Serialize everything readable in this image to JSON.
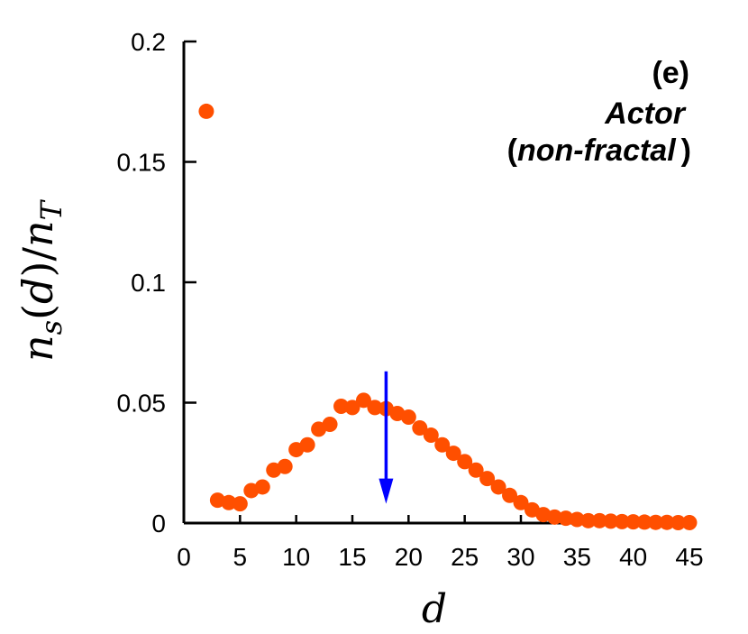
{
  "chart_data": {
    "type": "scatter",
    "title": "",
    "xlabel": "d",
    "ylabel": "n_s(d)/n_T",
    "xlim": [
      0,
      45
    ],
    "ylim": [
      0,
      0.2
    ],
    "x_ticks": [
      "0",
      "5",
      "10",
      "15",
      "20",
      "25",
      "30",
      "35",
      "40",
      "45"
    ],
    "y_ticks": [
      "0",
      "0.05",
      "0.1",
      "0.15",
      "0.2"
    ],
    "grid": false,
    "annotations": {
      "panel": "(e)",
      "name": "Actor",
      "paren_open": "(",
      "subtitle": "non-fractal",
      "paren_close": ")"
    },
    "series": [
      {
        "color": "#ff4f00",
        "x": [
          2,
          3,
          4,
          5,
          6,
          7,
          8,
          9,
          10,
          11,
          12,
          13,
          14,
          15,
          16,
          17,
          18,
          19,
          20,
          21,
          22,
          23,
          24,
          25,
          26,
          27,
          28,
          29,
          30,
          31,
          32,
          33,
          34,
          35,
          36,
          37,
          38,
          39,
          40,
          41,
          42,
          43,
          44,
          45
        ],
        "y": [
          0.171,
          0.0095,
          0.0085,
          0.008,
          0.0135,
          0.015,
          0.022,
          0.0235,
          0.0305,
          0.0325,
          0.039,
          0.041,
          0.0485,
          0.048,
          0.051,
          0.048,
          0.0475,
          0.0455,
          0.044,
          0.0395,
          0.0365,
          0.0325,
          0.029,
          0.0255,
          0.022,
          0.0185,
          0.015,
          0.0115,
          0.0085,
          0.0055,
          0.0035,
          0.0025,
          0.002,
          0.0015,
          0.001,
          0.001,
          0.0008,
          0.0006,
          0.0005,
          0.0004,
          0.0003,
          0.0003,
          0.0002,
          0.0002
        ]
      }
    ],
    "arrow": {
      "x": 18,
      "y_from": 0.063,
      "y_to": 0.008,
      "color": "#0000ff"
    }
  }
}
